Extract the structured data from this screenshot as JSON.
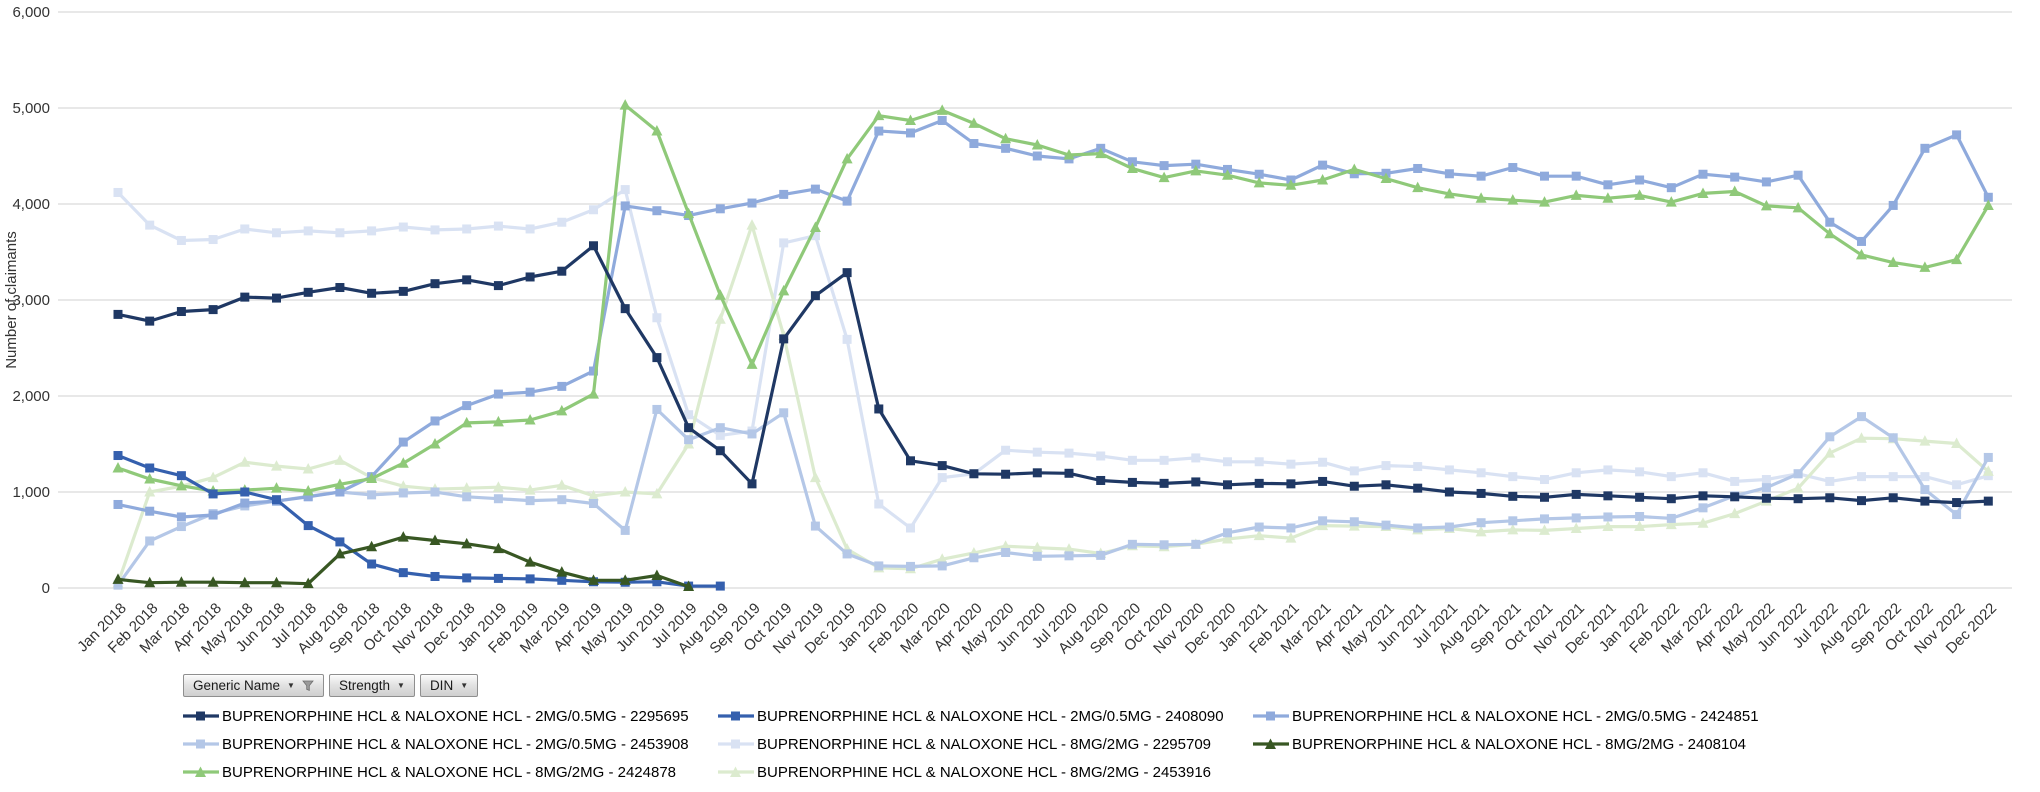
{
  "y_axis_title": "Number of claimants",
  "filter_buttons": [
    {
      "label": "Generic Name",
      "has_dropdown": true,
      "has_funnel": true
    },
    {
      "label": "Strength",
      "has_dropdown": true,
      "has_funnel": false
    },
    {
      "label": "DIN",
      "has_dropdown": true,
      "has_funnel": false
    }
  ],
  "chart_data": {
    "type": "line",
    "title": "",
    "xlabel": "",
    "ylabel": "Number of claimants",
    "ylim": [
      0,
      6000
    ],
    "ytick_step": 1000,
    "grid": true,
    "legend_position": "bottom",
    "x": [
      "Jan 2018",
      "Feb 2018",
      "Mar 2018",
      "Apr 2018",
      "May 2018",
      "Jun 2018",
      "Jul 2018",
      "Aug 2018",
      "Sep 2018",
      "Oct 2018",
      "Nov 2018",
      "Dec 2018",
      "Jan 2019",
      "Feb 2019",
      "Mar 2019",
      "Apr 2019",
      "May 2019",
      "Jun 2019",
      "Jul 2019",
      "Aug 2019",
      "Sep 2019",
      "Oct 2019",
      "Nov 2019",
      "Dec 2019",
      "Jan 2020",
      "Feb 2020",
      "Mar 2020",
      "Apr 2020",
      "May 2020",
      "Jun 2020",
      "Jul 2020",
      "Aug 2020",
      "Sep 2020",
      "Oct 2020",
      "Nov 2020",
      "Dec 2020",
      "Jan 2021",
      "Feb 2021",
      "Mar 2021",
      "Apr 2021",
      "May 2021",
      "Jun 2021",
      "Jul 2021",
      "Aug 2021",
      "Sep 2021",
      "Oct 2021",
      "Nov 2021",
      "Dec 2021",
      "Jan 2022",
      "Feb 2022",
      "Mar 2022",
      "Apr 2022",
      "May 2022",
      "Jun 2022",
      "Jul 2022",
      "Aug 2022",
      "Sep 2022",
      "Oct 2022",
      "Nov 2022",
      "Dec 2022"
    ],
    "series": [
      {
        "generic_name": "BUPRENORPHINE HCL & NALOXONE HCL",
        "strength": "2MG/0.5MG",
        "din": "2295695",
        "label": "BUPRENORPHINE HCL & NALOXONE HCL - 2MG/0.5MG - 2295695",
        "color": "#1F3864",
        "marker": "square",
        "values": [
          2850,
          2780,
          2880,
          2900,
          3030,
          3020,
          3080,
          3130,
          3070,
          3090,
          3170,
          3210,
          3150,
          3240,
          3300,
          3565,
          2910,
          2400,
          1670,
          1430,
          1085,
          2595,
          3045,
          3285,
          1865,
          1325,
          1275,
          1190,
          1185,
          1200,
          1195,
          1120,
          1100,
          1090,
          1105,
          1075,
          1090,
          1085,
          1110,
          1060,
          1075,
          1040,
          1000,
          985,
          955,
          945,
          975,
          960,
          945,
          930,
          960,
          950,
          935,
          930,
          940,
          910,
          940,
          905,
          890,
          905
        ]
      },
      {
        "generic_name": "BUPRENORPHINE HCL & NALOXONE HCL",
        "strength": "2MG/0.5MG",
        "din": "2408090",
        "label": "BUPRENORPHINE HCL & NALOXONE HCL - 2MG/0.5MG - 2408090",
        "color": "#3560AE",
        "marker": "square",
        "values": [
          1380,
          1250,
          1170,
          980,
          1000,
          920,
          650,
          480,
          250,
          160,
          120,
          105,
          100,
          95,
          80,
          65,
          60,
          65,
          20,
          20,
          null,
          null,
          null,
          null,
          null,
          null,
          null,
          null,
          null,
          null,
          null,
          null,
          null,
          null,
          null,
          null,
          null,
          null,
          null,
          null,
          null,
          null,
          null,
          null,
          null,
          null,
          null,
          null,
          null,
          null,
          null,
          null,
          null,
          null,
          null,
          null,
          null,
          null,
          null,
          null
        ]
      },
      {
        "generic_name": "BUPRENORPHINE HCL & NALOXONE HCL",
        "strength": "2MG/0.5MG",
        "din": "2424851",
        "label": "BUPRENORPHINE HCL & NALOXONE HCL - 2MG/0.5MG - 2424851",
        "color": "#8FAADC",
        "marker": "square",
        "values": [
          870,
          800,
          740,
          760,
          885,
          905,
          950,
          1000,
          1160,
          1520,
          1740,
          1900,
          2020,
          2040,
          2100,
          2260,
          3980,
          3930,
          3880,
          3950,
          4010,
          4100,
          4155,
          4030,
          4760,
          4740,
          4870,
          4630,
          4580,
          4500,
          4470,
          4580,
          4440,
          4400,
          4415,
          4360,
          4310,
          4250,
          4405,
          4315,
          4320,
          4370,
          4315,
          4290,
          4380,
          4290,
          4290,
          4200,
          4250,
          4170,
          4310,
          4280,
          4230,
          4300,
          3810,
          3610,
          3985,
          4580,
          4720,
          4070
        ]
      },
      {
        "generic_name": "BUPRENORPHINE HCL & NALOXONE HCL",
        "strength": "2MG/0.5MG",
        "din": "2453908",
        "label": "BUPRENORPHINE HCL & NALOXONE HCL - 2MG/0.5MG - 2453908",
        "color": "#B4C7E7",
        "marker": "square",
        "values": [
          30,
          490,
          640,
          775,
          855,
          905,
          955,
          1000,
          970,
          990,
          1000,
          950,
          930,
          910,
          920,
          880,
          600,
          1860,
          1545,
          1670,
          1605,
          1825,
          645,
          355,
          230,
          225,
          230,
          315,
          370,
          330,
          335,
          340,
          455,
          450,
          455,
          575,
          635,
          625,
          700,
          690,
          655,
          625,
          635,
          680,
          700,
          720,
          730,
          740,
          745,
          725,
          835,
          960,
          1045,
          1190,
          1575,
          1785,
          1565,
          1025,
          765,
          1360
        ]
      },
      {
        "generic_name": "BUPRENORPHINE HCL & NALOXONE HCL",
        "strength": "8MG/2MG",
        "din": "2295709",
        "label": "BUPRENORPHINE HCL & NALOXONE HCL - 8MG/2MG - 2295709",
        "color": "#D9E2F3",
        "marker": "square",
        "values": [
          4120,
          3780,
          3620,
          3630,
          3740,
          3700,
          3720,
          3700,
          3720,
          3760,
          3730,
          3740,
          3770,
          3740,
          3810,
          3940,
          4150,
          2815,
          1805,
          1590,
          1635,
          3595,
          3670,
          2590,
          875,
          625,
          1150,
          1190,
          1435,
          1415,
          1405,
          1375,
          1330,
          1330,
          1355,
          1315,
          1315,
          1290,
          1310,
          1220,
          1275,
          1265,
          1230,
          1200,
          1160,
          1130,
          1200,
          1230,
          1210,
          1160,
          1200,
          1110,
          1130,
          1190,
          1110,
          1160,
          1160,
          1160,
          1075,
          1170
        ]
      },
      {
        "generic_name": "BUPRENORPHINE HCL & NALOXONE HCL",
        "strength": "8MG/2MG",
        "din": "2408104",
        "label": "BUPRENORPHINE HCL & NALOXONE HCL - 8MG/2MG - 2408104",
        "color": "#385723",
        "marker": "triangle",
        "values": [
          90,
          55,
          60,
          60,
          55,
          55,
          45,
          355,
          430,
          530,
          495,
          460,
          410,
          270,
          165,
          80,
          80,
          130,
          15,
          null,
          null,
          null,
          null,
          null,
          null,
          null,
          null,
          null,
          null,
          null,
          null,
          null,
          null,
          null,
          null,
          null,
          null,
          null,
          null,
          null,
          null,
          null,
          null,
          null,
          null,
          null,
          null,
          null,
          null,
          null,
          null,
          null,
          null,
          null,
          null,
          null,
          null,
          null,
          null,
          null
        ]
      },
      {
        "generic_name": "BUPRENORPHINE HCL & NALOXONE HCL",
        "strength": "8MG/2MG",
        "din": "2424878",
        "label": "BUPRENORPHINE HCL & NALOXONE HCL - 8MG/2MG - 2424878",
        "color": "#8FC979",
        "marker": "triangle",
        "values": [
          1250,
          1135,
          1065,
          1010,
          1020,
          1040,
          1010,
          1080,
          1140,
          1300,
          1500,
          1720,
          1730,
          1750,
          1845,
          2020,
          5030,
          4760,
          3900,
          3050,
          2330,
          3095,
          3755,
          4470,
          4920,
          4870,
          4975,
          4840,
          4680,
          4615,
          4510,
          4525,
          4370,
          4275,
          4345,
          4300,
          4220,
          4195,
          4250,
          4360,
          4265,
          4170,
          4105,
          4060,
          4040,
          4020,
          4090,
          4060,
          4090,
          4020,
          4110,
          4130,
          3980,
          3960,
          3690,
          3470,
          3390,
          3340,
          3420,
          3985
        ]
      },
      {
        "generic_name": "BUPRENORPHINE HCL & NALOXONE HCL",
        "strength": "8MG/2MG",
        "din": "2453916",
        "label": "BUPRENORPHINE HCL & NALOXONE HCL - 8MG/2MG - 2453916",
        "color": "#DCEBCF",
        "marker": "triangle",
        "values": [
          50,
          1000,
          1060,
          1150,
          1310,
          1270,
          1240,
          1330,
          1150,
          1060,
          1030,
          1040,
          1050,
          1020,
          1070,
          960,
          1000,
          980,
          1500,
          2800,
          3780,
          2630,
          1150,
          405,
          210,
          200,
          300,
          365,
          435,
          420,
          405,
          360,
          440,
          430,
          455,
          510,
          545,
          520,
          650,
          645,
          640,
          605,
          620,
          585,
          605,
          600,
          620,
          640,
          640,
          660,
          675,
          775,
          905,
          1040,
          1405,
          1560,
          1555,
          1530,
          1505,
          1215
        ]
      }
    ],
    "draw_order": [
      4,
      7,
      3,
      2,
      6,
      1,
      5,
      0
    ]
  }
}
